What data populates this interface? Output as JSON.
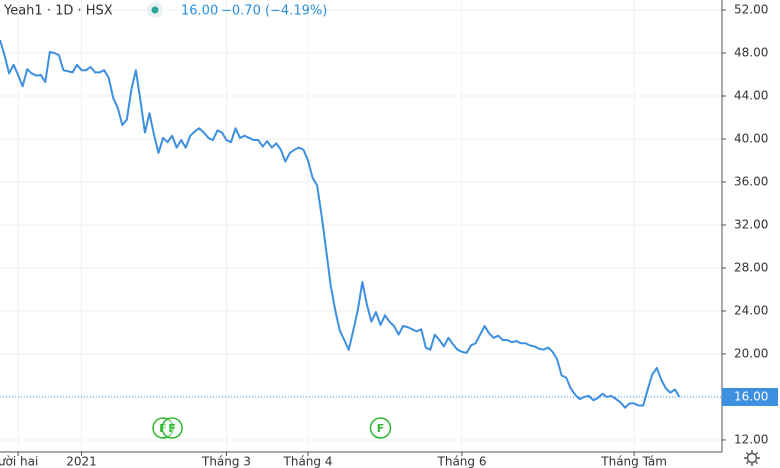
{
  "chart_data": {
    "type": "line",
    "header": {
      "symbol": "Yeah1 · 1D · HSX",
      "price": "16.00",
      "change": "−0.70 (−4.19%)"
    },
    "series": [
      {
        "color": "#3d8fe0",
        "values": [
          49.2,
          47.8,
          46.1,
          46.9,
          45.95,
          44.9,
          46.5,
          46.1,
          45.9,
          45.95,
          45.3,
          48.1,
          48.0,
          47.8,
          46.4,
          46.3,
          46.2,
          46.9,
          46.4,
          46.4,
          46.7,
          46.2,
          46.2,
          46.4,
          45.7,
          43.8,
          42.9,
          41.3,
          41.8,
          44.6,
          46.4,
          43.6,
          40.6,
          42.4,
          40.4,
          38.7,
          40.1,
          39.7,
          40.3,
          39.2,
          39.9,
          39.2,
          40.3,
          40.7,
          41.0,
          40.6,
          40.1,
          39.9,
          40.8,
          40.6,
          39.9,
          39.7,
          41.0,
          40.1,
          40.3,
          40.1,
          39.9,
          39.9,
          39.3,
          39.8,
          39.2,
          39.6,
          39.0,
          37.9,
          38.7,
          39.0,
          39.2,
          39.0,
          38.0,
          36.4,
          35.7,
          32.9,
          29.7,
          26.4,
          24.1,
          22.2,
          21.3,
          20.4,
          22.2,
          24.1,
          26.7,
          24.6,
          23.0,
          23.9,
          22.7,
          23.6,
          23.0,
          22.6,
          21.8,
          22.6,
          22.5,
          22.3,
          22.1,
          22.3,
          20.6,
          20.4,
          21.8,
          21.3,
          20.7,
          21.5,
          20.9,
          20.4,
          20.2,
          20.1,
          20.8,
          21.0,
          21.8,
          22.6,
          21.9,
          21.5,
          21.7,
          21.3,
          21.3,
          21.1,
          21.2,
          21.0,
          21.0,
          20.8,
          20.7,
          20.5,
          20.4,
          20.6,
          20.2,
          19.5,
          18.0,
          17.8,
          16.8,
          16.2,
          15.8,
          16.0,
          16.1,
          15.7,
          15.9,
          16.3,
          16.0,
          16.1,
          15.8,
          15.5,
          15.0,
          15.4,
          15.4,
          15.2,
          15.2,
          16.7,
          18.1,
          18.7,
          17.6,
          16.8,
          16.4,
          16.7,
          16.0
        ]
      }
    ],
    "xlim": [
      0,
      159.4
    ],
    "xticks": [
      {
        "value": 4,
        "label": "ười hai"
      },
      {
        "value": 18,
        "label": "2021"
      },
      {
        "value": 50,
        "label": "Tháng 3"
      },
      {
        "value": 68,
        "label": "Tháng 4"
      },
      {
        "value": 102,
        "label": "Tháng 6"
      },
      {
        "value": 140,
        "label": "Tháng Tám"
      }
    ],
    "ylim": [
      10.88,
      52.93
    ],
    "yticks": [
      {
        "value": 12,
        "label": "12.00"
      },
      {
        "value": 16,
        "label": "16.00"
      },
      {
        "value": 20,
        "label": "20.00"
      },
      {
        "value": 24,
        "label": "24.00"
      },
      {
        "value": 28,
        "label": "28.00"
      },
      {
        "value": 32,
        "label": "32.00"
      },
      {
        "value": 36,
        "label": "36.00"
      },
      {
        "value": 40,
        "label": "40.00"
      },
      {
        "value": 44,
        "label": "44.00"
      },
      {
        "value": 48,
        "label": "48.00"
      },
      {
        "value": 52,
        "label": "52.00"
      }
    ],
    "last_price": {
      "value": 16,
      "label": "16.00"
    },
    "events": [
      {
        "x": 36,
        "label": "F"
      },
      {
        "x": 38,
        "label": "F"
      },
      {
        "x": 84,
        "label": "F"
      }
    ],
    "grid": true
  }
}
